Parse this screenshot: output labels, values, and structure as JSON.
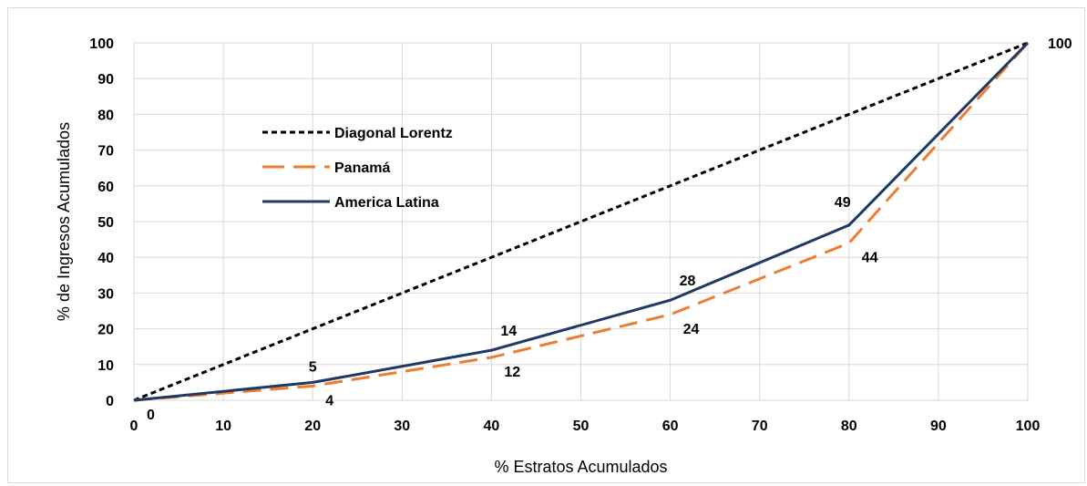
{
  "chart_data": {
    "type": "line",
    "title": "",
    "xlabel": "% Estratos Acumulados",
    "ylabel": "% de Ingresos Acumulados",
    "xlim": [
      0,
      100
    ],
    "ylim": [
      0,
      100
    ],
    "x_ticks": [
      0,
      10,
      20,
      30,
      40,
      50,
      60,
      70,
      80,
      90,
      100
    ],
    "y_ticks": [
      0,
      10,
      20,
      30,
      40,
      50,
      60,
      70,
      80,
      90,
      100
    ],
    "grid": true,
    "legend_position": "top-left",
    "series": [
      {
        "name": "Diagonal Lorentz",
        "color": "#000000",
        "style": "dotted",
        "x": [
          0,
          100
        ],
        "y": [
          0,
          100
        ],
        "labels": []
      },
      {
        "name": "Panamá",
        "color": "#ED7D31",
        "style": "dashed",
        "x": [
          0,
          20,
          40,
          60,
          80,
          100
        ],
        "y": [
          0,
          4,
          12,
          24,
          44,
          100
        ],
        "labels": [
          {
            "x": 20,
            "y": 4,
            "text": "4",
            "pos": "below-right"
          },
          {
            "x": 40,
            "y": 12,
            "text": "12",
            "pos": "below-right"
          },
          {
            "x": 60,
            "y": 24,
            "text": "24",
            "pos": "below-right"
          },
          {
            "x": 80,
            "y": 44,
            "text": "44",
            "pos": "below-right"
          }
        ]
      },
      {
        "name": "America Latina",
        "color": "#1F3864",
        "style": "solid",
        "x": [
          0,
          20,
          40,
          60,
          80,
          100
        ],
        "y": [
          0,
          5,
          14,
          28,
          49,
          100
        ],
        "labels": [
          {
            "x": 0,
            "y": 0,
            "text": "0",
            "pos": "below-right"
          },
          {
            "x": 20,
            "y": 5,
            "text": "5",
            "pos": "above"
          },
          {
            "x": 40,
            "y": 14,
            "text": "14",
            "pos": "above-right"
          },
          {
            "x": 60,
            "y": 28,
            "text": "28",
            "pos": "above-right"
          },
          {
            "x": 80,
            "y": 49,
            "text": "49",
            "pos": "above-left"
          },
          {
            "x": 100,
            "y": 100,
            "text": "100",
            "pos": "right"
          }
        ]
      }
    ]
  }
}
